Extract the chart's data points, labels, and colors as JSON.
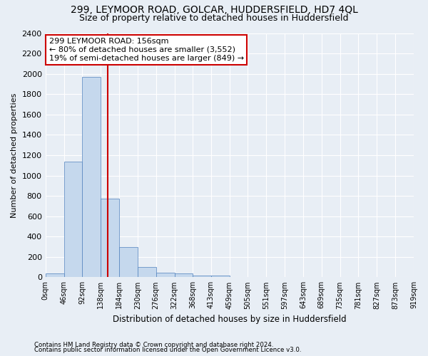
{
  "title1": "299, LEYMOOR ROAD, GOLCAR, HUDDERSFIELD, HD7 4QL",
  "title2": "Size of property relative to detached houses in Huddersfield",
  "xlabel": "Distribution of detached houses by size in Huddersfield",
  "ylabel": "Number of detached properties",
  "bin_edges": [
    0,
    46,
    92,
    138,
    184,
    230,
    276,
    322,
    368,
    413,
    459,
    505,
    551,
    597,
    643,
    689,
    735,
    781,
    827,
    873,
    919
  ],
  "bar_heights": [
    35,
    1140,
    1970,
    775,
    300,
    100,
    45,
    35,
    20,
    15,
    5,
    3,
    2,
    1,
    1,
    1,
    0,
    0,
    0,
    0
  ],
  "bar_color": "#c5d8ed",
  "bar_edge_color": "#4f81bd",
  "property_size": 156,
  "vline_color": "#cc0000",
  "annotation_line1": "299 LEYMOOR ROAD: 156sqm",
  "annotation_line2": "← 80% of detached houses are smaller (3,552)",
  "annotation_line3": "19% of semi-detached houses are larger (849) →",
  "annotation_box_color": "#ffffff",
  "annotation_box_edge": "#cc0000",
  "ylim": [
    0,
    2400
  ],
  "yticks": [
    0,
    200,
    400,
    600,
    800,
    1000,
    1200,
    1400,
    1600,
    1800,
    2000,
    2200,
    2400
  ],
  "footnote1": "Contains HM Land Registry data © Crown copyright and database right 2024.",
  "footnote2": "Contains public sector information licensed under the Open Government Licence v3.0.",
  "bg_color": "#e8eef5",
  "grid_color": "#ffffff",
  "title1_fontsize": 10,
  "title2_fontsize": 9,
  "annotation_fontsize": 8,
  "ylabel_fontsize": 8,
  "xlabel_fontsize": 8.5,
  "ytick_fontsize": 8,
  "xtick_fontsize": 7
}
